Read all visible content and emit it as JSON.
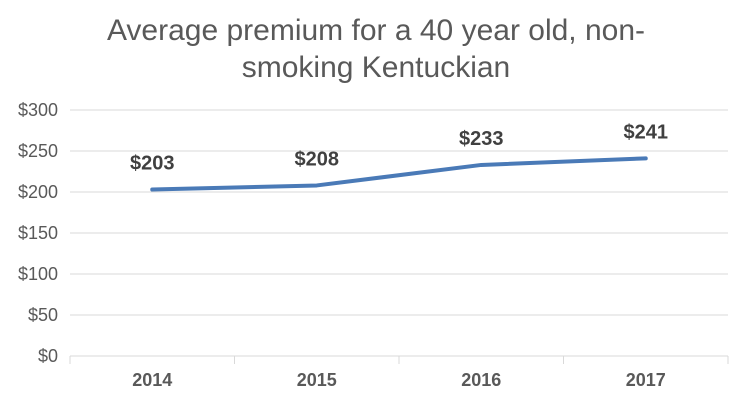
{
  "chart_data": {
    "type": "line",
    "title_lines": [
      "Average premium for a 40 year old, non-",
      "smoking Kentuckian"
    ],
    "categories": [
      "2014",
      "2015",
      "2016",
      "2017"
    ],
    "series": [
      {
        "values": [
          203,
          208,
          233,
          241
        ],
        "labels": [
          "$203",
          "$208",
          "$233",
          "$241"
        ]
      }
    ],
    "ylim": [
      0,
      300
    ],
    "yticks": [
      0,
      50,
      100,
      150,
      200,
      250,
      300
    ],
    "ytick_labels": [
      "$0",
      "$50",
      "$100",
      "$150",
      "$200",
      "$250",
      "$300"
    ],
    "grid": true,
    "legend": "none",
    "line_color": "#4a7ab7",
    "grid_color": "#d9d9d9"
  }
}
